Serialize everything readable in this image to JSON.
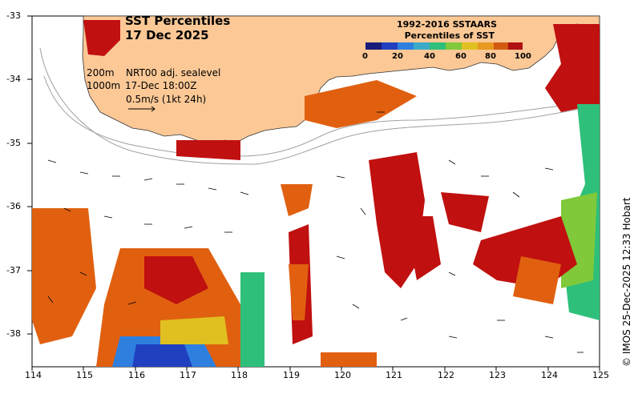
{
  "title": {
    "line1": "SST Percentiles",
    "line2": "17 Dec 2025"
  },
  "legend": {
    "line1": "1992-2016 SSTAARS",
    "line2": "Percentiles of SST",
    "ticks": [
      "0",
      "20",
      "40",
      "60",
      "80",
      "100"
    ],
    "colors": [
      "#1a1a7a",
      "#2040c0",
      "#2f7fdf",
      "#3aaac8",
      "#2ec07a",
      "#7fc93a",
      "#e0c020",
      "#e89a20",
      "#d05a10",
      "#b01010"
    ]
  },
  "info": {
    "depth1": "200m",
    "depth2": "1000m",
    "model": "NRT00 adj. sealevel",
    "time": "17-Dec 18:00Z",
    "scale": "0.5m/s (1kt 24h)"
  },
  "axes": {
    "lat_labels": [
      "-33",
      "-34",
      "-35",
      "-36",
      "-37",
      "-38"
    ],
    "lon_labels": [
      "114",
      "115",
      "116",
      "117",
      "118",
      "119",
      "120",
      "121",
      "122",
      "123",
      "124",
      "125"
    ]
  },
  "credit": "© IMOS 25-Dec-2025 12:33 Hobart",
  "colors": {
    "land": "#fbc896",
    "hot": "#c01010",
    "warm": "#e06010",
    "cool": "#2040c0"
  }
}
